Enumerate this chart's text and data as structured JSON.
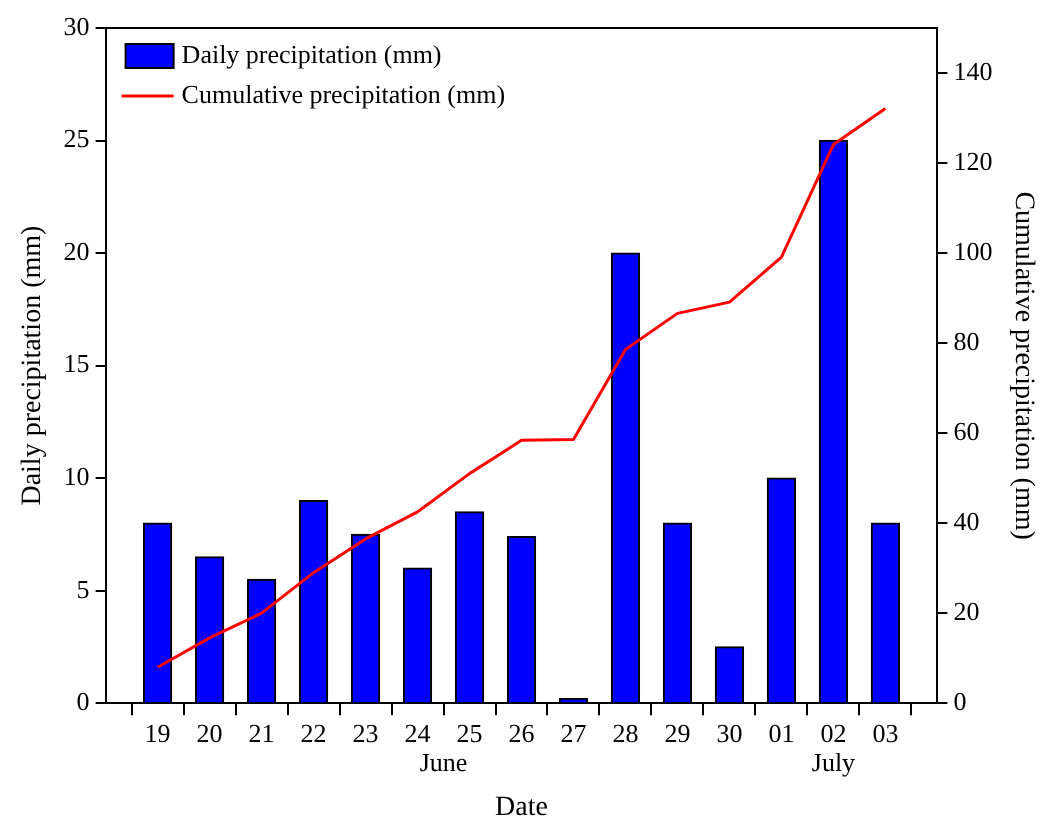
{
  "chart_data": {
    "type": "bar",
    "xlabel": "Date",
    "ylabel": "Daily precipitation (mm)",
    "y2label": "Cumulative precipitation (mm)",
    "categories": [
      "19",
      "20",
      "21",
      "22",
      "23",
      "24",
      "25",
      "26",
      "27",
      "28",
      "29",
      "30",
      "01",
      "02",
      "03"
    ],
    "series": [
      {
        "name": "Daily precipitation (mm)",
        "color": "#0000ff",
        "values": [
          8,
          6.5,
          5.5,
          9,
          7.5,
          6,
          8.5,
          7.4,
          0.2,
          20,
          8,
          2.5,
          10,
          25,
          8
        ]
      },
      {
        "name": "Cumulative precipitation (mm)",
        "type": "line",
        "axis": "y2",
        "color": "#ff0000",
        "values": [
          8,
          14.5,
          20,
          29,
          36.5,
          42.5,
          51,
          58.4,
          58.6,
          78.6,
          86.6,
          89.1,
          99.1,
          124.1,
          132.1
        ]
      }
    ],
    "ylim": [
      0,
      30
    ],
    "yticks": [
      0,
      5,
      10,
      15,
      20,
      25,
      30
    ],
    "y2lim": [
      0,
      150
    ],
    "y2ticks": [
      0,
      20,
      40,
      60,
      80,
      100,
      120,
      140
    ],
    "annotations": [
      "June",
      "July"
    ],
    "legend": "top left",
    "grid": false,
    "marker": "none",
    "line_style": "solid"
  }
}
